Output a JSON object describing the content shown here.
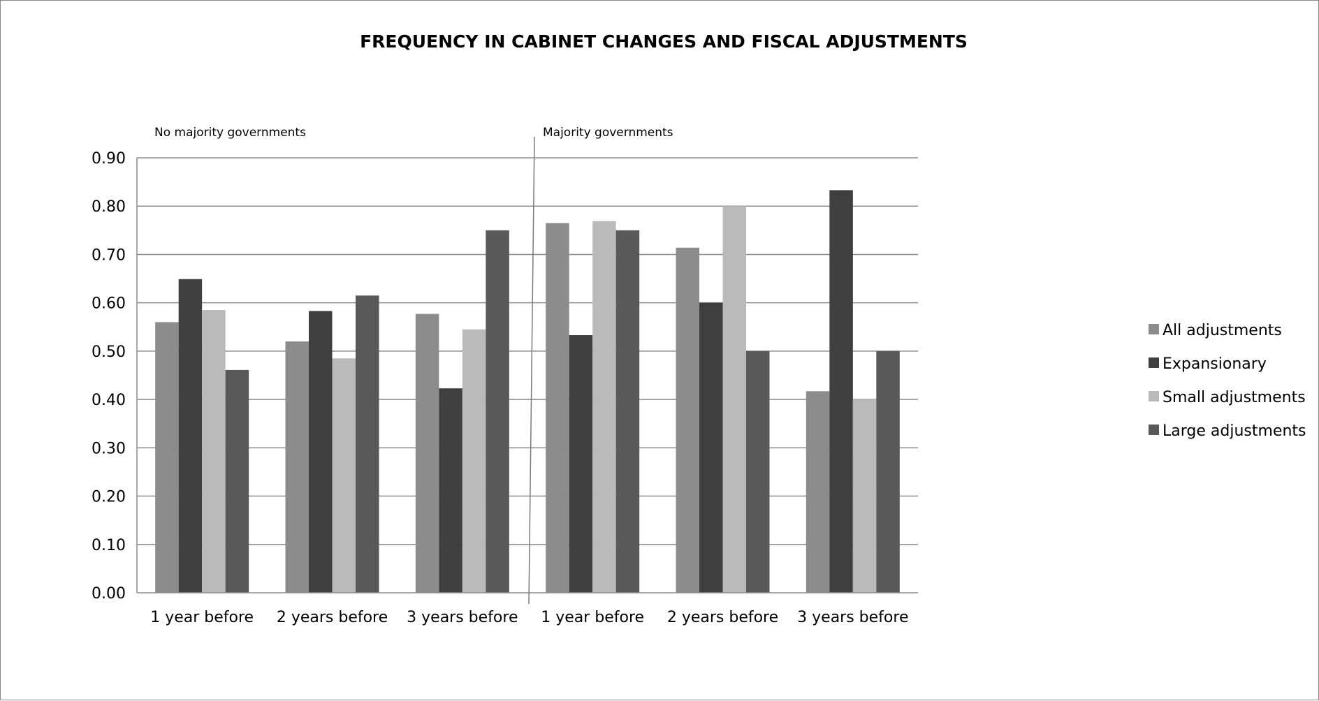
{
  "chart_data": {
    "type": "bar",
    "title": "FREQUENCY IN CABINET  CHANGES AND FISCAL ADJUSTMENTS",
    "xlabel": "",
    "ylabel": "",
    "ylim": [
      0,
      0.9
    ],
    "yticks": [
      "0.00",
      "0.10",
      "0.20",
      "0.30",
      "0.40",
      "0.50",
      "0.60",
      "0.70",
      "0.80",
      "0.90"
    ],
    "grid": true,
    "legend_position": "right",
    "sections": [
      "No majority governments",
      "Majority governments"
    ],
    "categories": [
      "1 year before",
      "2 years before",
      "3 years before",
      "1 year before",
      "2 years before",
      "3 years before"
    ],
    "series": [
      {
        "name": "All adjustments",
        "color": "#8c8c8c",
        "values": [
          0.56,
          0.52,
          0.577,
          0.765,
          0.714,
          0.417
        ]
      },
      {
        "name": "Expansionary",
        "color": "#3f3f3f",
        "values": [
          0.649,
          0.583,
          0.423,
          0.533,
          0.6,
          0.833
        ]
      },
      {
        "name": "Small adjustments",
        "color": "#bababa",
        "values": [
          0.585,
          0.485,
          0.545,
          0.769,
          0.8,
          0.4
        ]
      },
      {
        "name": "Large adjustments",
        "color": "#595959",
        "values": [
          0.461,
          0.615,
          0.75,
          0.75,
          0.5,
          0.5
        ]
      }
    ]
  }
}
